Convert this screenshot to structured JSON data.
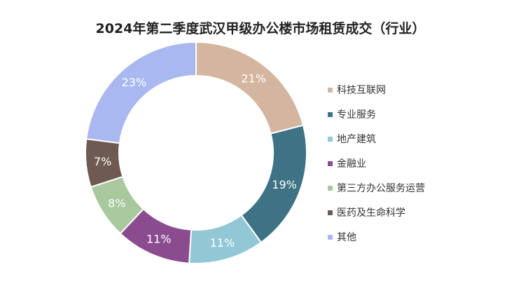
{
  "chart_data": {
    "type": "pie",
    "title": "2024年第二季度武汉甲级办公楼市场租赁成交（行业）",
    "donut": true,
    "legend_position": "right",
    "slices": [
      {
        "label": "科技互联网",
        "value": 21,
        "display": "21%",
        "color": "#D4B5A0"
      },
      {
        "label": "专业服务",
        "value": 19,
        "display": "19%",
        "color": "#3E7385"
      },
      {
        "label": "地产建筑",
        "value": 11,
        "display": "11%",
        "color": "#92C7D6"
      },
      {
        "label": "金融业",
        "value": 11,
        "display": "11%",
        "color": "#8B4C8F"
      },
      {
        "label": "第三方办公服务运营",
        "value": 8,
        "display": "8%",
        "color": "#A8C89E"
      },
      {
        "label": "医药及生命科学",
        "value": 7,
        "display": "7%",
        "color": "#6E5A50"
      },
      {
        "label": "其他",
        "value": 23,
        "display": "23%",
        "color": "#A9B8F0"
      }
    ]
  }
}
